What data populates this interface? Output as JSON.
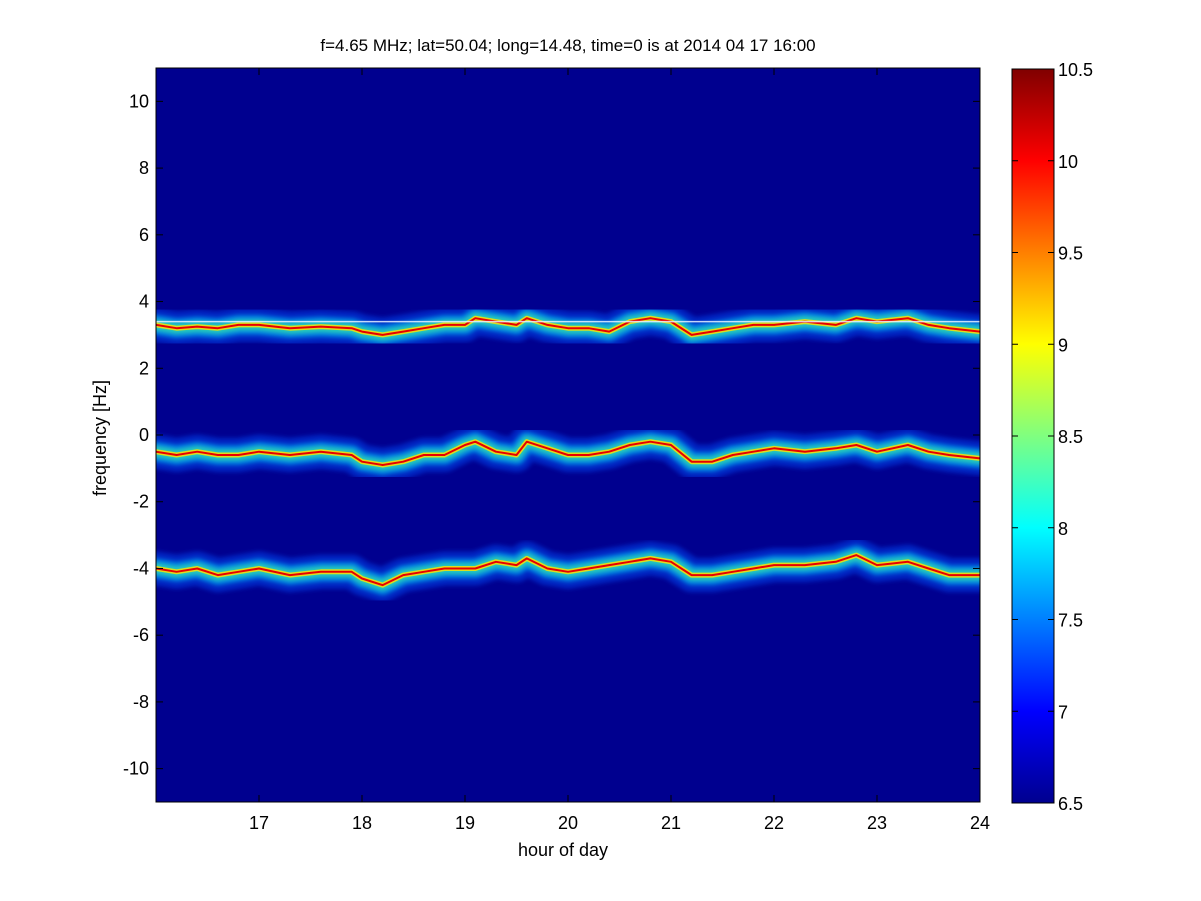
{
  "chart_data": {
    "type": "heatmap",
    "title": "f=4.65 MHz;  lat=50.04; long=14.48, time=0 is at 2014 04 17 16:00",
    "xlabel": "hour of day",
    "ylabel": "frequency [Hz]",
    "xlim": [
      16,
      24
    ],
    "ylim": [
      -11,
      11
    ],
    "x_ticks": [
      17,
      18,
      19,
      20,
      21,
      22,
      23,
      24
    ],
    "y_ticks": [
      -10,
      -8,
      -6,
      -4,
      -2,
      0,
      2,
      4,
      6,
      8,
      10
    ],
    "colorbar": {
      "range": [
        6.5,
        10.5
      ],
      "ticks": [
        6.5,
        7,
        7.5,
        8,
        8.5,
        9,
        9.5,
        10,
        10.5
      ],
      "colormap": "jet"
    },
    "background_color": "#00008F",
    "reference_line_freq_hz": 3.4,
    "series": [
      {
        "hours": [
          16.0,
          16.2,
          16.4,
          16.6,
          16.8,
          17.0,
          17.3,
          17.6,
          17.9,
          18.0,
          18.2,
          18.4,
          18.6,
          18.8,
          19.0,
          19.1,
          19.3,
          19.5,
          19.6,
          19.8,
          20.0,
          20.2,
          20.4,
          20.6,
          20.8,
          21.0,
          21.2,
          21.4,
          21.6,
          21.8,
          22.0,
          22.3,
          22.6,
          22.8,
          23.0,
          23.3,
          23.5,
          23.7,
          24.0
        ],
        "freq_hz": [
          3.3,
          3.2,
          3.25,
          3.2,
          3.3,
          3.3,
          3.2,
          3.25,
          3.2,
          3.1,
          3.0,
          3.1,
          3.2,
          3.3,
          3.3,
          3.5,
          3.4,
          3.3,
          3.5,
          3.3,
          3.2,
          3.2,
          3.1,
          3.4,
          3.5,
          3.4,
          3.0,
          3.1,
          3.2,
          3.3,
          3.3,
          3.4,
          3.3,
          3.5,
          3.4,
          3.5,
          3.3,
          3.2,
          3.1
        ]
      },
      {
        "hours": [
          16.0,
          16.2,
          16.4,
          16.6,
          16.8,
          17.0,
          17.3,
          17.6,
          17.9,
          18.0,
          18.2,
          18.4,
          18.6,
          18.8,
          19.0,
          19.1,
          19.3,
          19.5,
          19.6,
          19.8,
          20.0,
          20.2,
          20.4,
          20.6,
          20.8,
          21.0,
          21.2,
          21.4,
          21.6,
          21.8,
          22.0,
          22.3,
          22.6,
          22.8,
          23.0,
          23.3,
          23.5,
          23.7,
          24.0
        ],
        "freq_hz": [
          -0.5,
          -0.6,
          -0.5,
          -0.6,
          -0.6,
          -0.5,
          -0.6,
          -0.5,
          -0.6,
          -0.8,
          -0.9,
          -0.8,
          -0.6,
          -0.6,
          -0.3,
          -0.2,
          -0.5,
          -0.6,
          -0.2,
          -0.4,
          -0.6,
          -0.6,
          -0.5,
          -0.3,
          -0.2,
          -0.3,
          -0.8,
          -0.8,
          -0.6,
          -0.5,
          -0.4,
          -0.5,
          -0.4,
          -0.3,
          -0.5,
          -0.3,
          -0.5,
          -0.6,
          -0.7
        ]
      },
      {
        "hours": [
          16.0,
          16.2,
          16.4,
          16.6,
          16.8,
          17.0,
          17.3,
          17.6,
          17.9,
          18.0,
          18.2,
          18.4,
          18.6,
          18.8,
          19.0,
          19.1,
          19.3,
          19.5,
          19.6,
          19.8,
          20.0,
          20.2,
          20.4,
          20.6,
          20.8,
          21.0,
          21.2,
          21.4,
          21.6,
          21.8,
          22.0,
          22.3,
          22.6,
          22.8,
          23.0,
          23.3,
          23.5,
          23.7,
          24.0
        ],
        "freq_hz": [
          -4.0,
          -4.1,
          -4.0,
          -4.2,
          -4.1,
          -4.0,
          -4.2,
          -4.1,
          -4.1,
          -4.3,
          -4.5,
          -4.2,
          -4.1,
          -4.0,
          -4.0,
          -4.0,
          -3.8,
          -3.9,
          -3.7,
          -4.0,
          -4.1,
          -4.0,
          -3.9,
          -3.8,
          -3.7,
          -3.8,
          -4.2,
          -4.2,
          -4.1,
          -4.0,
          -3.9,
          -3.9,
          -3.8,
          -3.6,
          -3.9,
          -3.8,
          -4.0,
          -4.2,
          -4.2
        ]
      }
    ]
  }
}
